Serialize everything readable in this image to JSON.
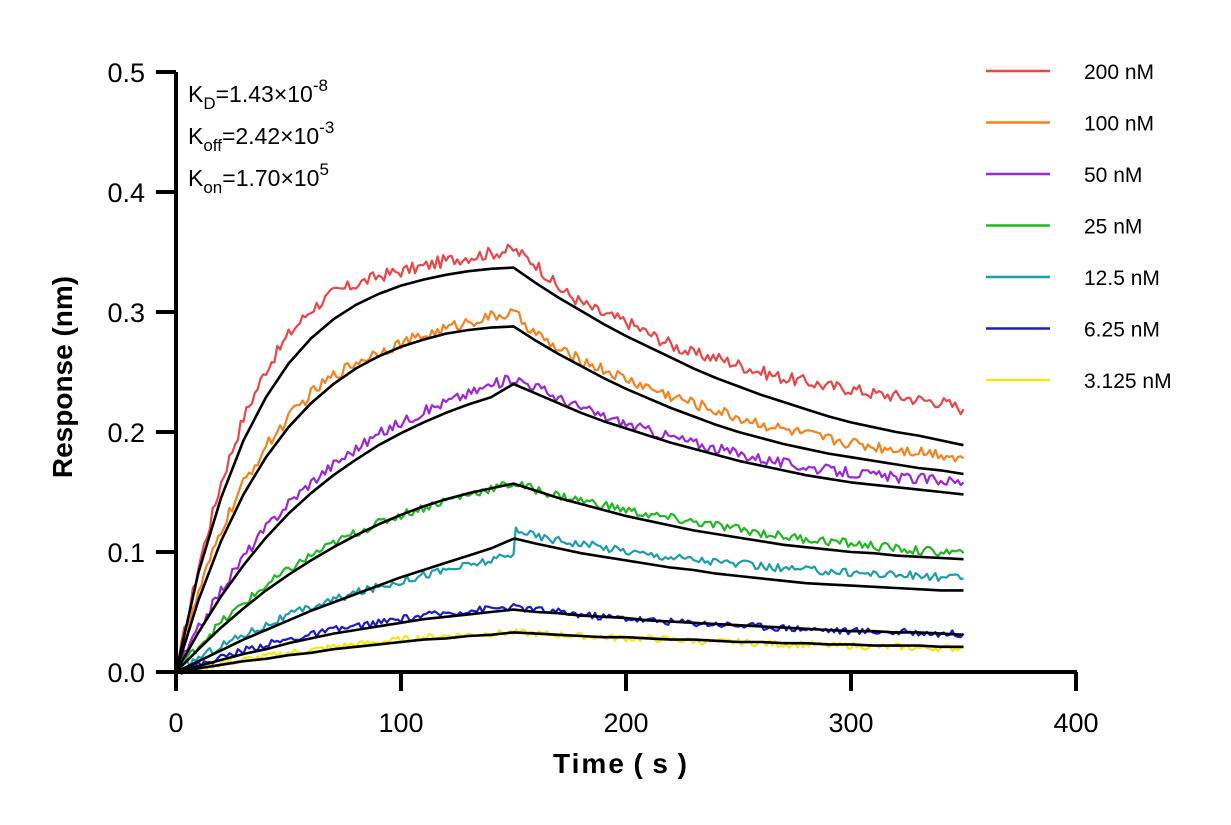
{
  "chart_data": {
    "type": "line",
    "xlabel": "Time ( s )",
    "ylabel": "Response (nm)",
    "xlim": [
      0,
      400
    ],
    "ylim": [
      0,
      0.5
    ],
    "x_ticks": [
      "0",
      "100",
      "200",
      "300",
      "400"
    ],
    "y_ticks": [
      "0.0",
      "0.1",
      "0.2",
      "0.3",
      "0.4",
      "0.5"
    ],
    "grid": false,
    "legend_position": "top-right",
    "annotations": [
      {
        "base": "K",
        "sub": "D",
        "text": "=1.43×10",
        "sup": "-8"
      },
      {
        "base": "K",
        "sub": "off",
        "text": "=2.42×10",
        "sup": "-3"
      },
      {
        "base": "K",
        "sub": "on",
        "text": "=1.70×10",
        "sup": "5"
      }
    ],
    "association_end_s": 150,
    "end_s": 350,
    "series": [
      {
        "name": "200 nM",
        "color": "#e8474a",
        "x": [
          0,
          10,
          20,
          30,
          40,
          50,
          60,
          70,
          80,
          90,
          100,
          110,
          120,
          130,
          140,
          150,
          160,
          170,
          180,
          190,
          200,
          210,
          220,
          230,
          240,
          250,
          260,
          270,
          280,
          290,
          300,
          310,
          320,
          330,
          340,
          350
        ],
        "measured": [
          0,
          0.088,
          0.158,
          0.212,
          0.252,
          0.281,
          0.302,
          0.316,
          0.323,
          0.33,
          0.334,
          0.338,
          0.343,
          0.346,
          0.349,
          0.352,
          0.34,
          0.32,
          0.308,
          0.298,
          0.292,
          0.282,
          0.273,
          0.265,
          0.262,
          0.256,
          0.25,
          0.245,
          0.242,
          0.238,
          0.236,
          0.232,
          0.23,
          0.227,
          0.225,
          0.219
        ],
        "fitted": [
          0,
          0.083,
          0.145,
          0.193,
          0.229,
          0.257,
          0.278,
          0.294,
          0.306,
          0.315,
          0.322,
          0.327,
          0.331,
          0.334,
          0.336,
          0.337,
          0.324,
          0.312,
          0.301,
          0.29,
          0.28,
          0.271,
          0.262,
          0.253,
          0.245,
          0.238,
          0.231,
          0.225,
          0.219,
          0.213,
          0.208,
          0.204,
          0.2,
          0.197,
          0.193,
          0.189
        ]
      },
      {
        "name": "100 nM",
        "color": "#f58220",
        "x": [
          0,
          10,
          20,
          30,
          40,
          50,
          60,
          70,
          80,
          90,
          100,
          110,
          120,
          130,
          140,
          150,
          160,
          170,
          180,
          190,
          200,
          210,
          220,
          230,
          240,
          250,
          260,
          270,
          280,
          290,
          300,
          310,
          320,
          330,
          340,
          350
        ],
        "measured": [
          0,
          0.066,
          0.118,
          0.157,
          0.188,
          0.212,
          0.232,
          0.247,
          0.258,
          0.267,
          0.274,
          0.28,
          0.286,
          0.292,
          0.296,
          0.299,
          0.282,
          0.268,
          0.26,
          0.252,
          0.244,
          0.237,
          0.23,
          0.224,
          0.218,
          0.212,
          0.207,
          0.202,
          0.198,
          0.194,
          0.191,
          0.188,
          0.186,
          0.184,
          0.182,
          0.178
        ],
        "fitted": [
          0,
          0.06,
          0.109,
          0.148,
          0.179,
          0.204,
          0.224,
          0.24,
          0.253,
          0.263,
          0.271,
          0.277,
          0.282,
          0.285,
          0.287,
          0.288,
          0.276,
          0.265,
          0.255,
          0.245,
          0.236,
          0.228,
          0.22,
          0.213,
          0.206,
          0.2,
          0.195,
          0.19,
          0.186,
          0.182,
          0.179,
          0.176,
          0.173,
          0.17,
          0.168,
          0.165
        ]
      },
      {
        "name": "50 nM",
        "color": "#9b27d6",
        "x": [
          0,
          10,
          20,
          30,
          40,
          50,
          60,
          70,
          80,
          90,
          100,
          110,
          120,
          130,
          140,
          150,
          160,
          170,
          180,
          190,
          200,
          210,
          220,
          230,
          240,
          250,
          260,
          270,
          280,
          290,
          300,
          310,
          320,
          330,
          340,
          350
        ],
        "measured": [
          0,
          0.036,
          0.068,
          0.096,
          0.12,
          0.141,
          0.158,
          0.173,
          0.186,
          0.198,
          0.208,
          0.217,
          0.225,
          0.232,
          0.239,
          0.245,
          0.238,
          0.228,
          0.22,
          0.213,
          0.207,
          0.201,
          0.196,
          0.191,
          0.186,
          0.182,
          0.178,
          0.174,
          0.171,
          0.168,
          0.166,
          0.164,
          0.162,
          0.161,
          0.16,
          0.158
        ],
        "fitted": [
          0,
          0.033,
          0.063,
          0.089,
          0.112,
          0.132,
          0.149,
          0.164,
          0.177,
          0.189,
          0.199,
          0.208,
          0.216,
          0.223,
          0.229,
          0.24,
          0.232,
          0.224,
          0.216,
          0.209,
          0.203,
          0.197,
          0.191,
          0.186,
          0.181,
          0.176,
          0.172,
          0.168,
          0.164,
          0.161,
          0.158,
          0.156,
          0.154,
          0.152,
          0.15,
          0.148
        ]
      },
      {
        "name": "25 nM",
        "color": "#22b823",
        "x": [
          0,
          10,
          20,
          30,
          40,
          50,
          60,
          70,
          80,
          90,
          100,
          110,
          120,
          130,
          140,
          150,
          160,
          170,
          180,
          190,
          200,
          210,
          220,
          230,
          240,
          250,
          260,
          270,
          280,
          290,
          300,
          310,
          320,
          330,
          340,
          350
        ],
        "measured": [
          0,
          0.022,
          0.041,
          0.057,
          0.072,
          0.085,
          0.097,
          0.107,
          0.116,
          0.124,
          0.131,
          0.137,
          0.143,
          0.148,
          0.153,
          0.157,
          0.152,
          0.147,
          0.143,
          0.139,
          0.135,
          0.131,
          0.128,
          0.125,
          0.122,
          0.119,
          0.116,
          0.113,
          0.111,
          0.109,
          0.107,
          0.105,
          0.103,
          0.101,
          0.1,
          0.099
        ],
        "fitted": [
          0,
          0.019,
          0.037,
          0.053,
          0.068,
          0.081,
          0.093,
          0.104,
          0.114,
          0.123,
          0.131,
          0.138,
          0.144,
          0.149,
          0.153,
          0.157,
          0.151,
          0.145,
          0.14,
          0.135,
          0.13,
          0.126,
          0.122,
          0.118,
          0.115,
          0.112,
          0.109,
          0.106,
          0.104,
          0.102,
          0.1,
          0.099,
          0.097,
          0.096,
          0.095,
          0.094
        ]
      },
      {
        "name": "12.5 nM",
        "color": "#1d9ea8",
        "x": [
          0,
          10,
          20,
          30,
          40,
          50,
          60,
          70,
          80,
          90,
          100,
          110,
          120,
          130,
          140,
          150,
          151,
          160,
          170,
          180,
          190,
          200,
          210,
          220,
          230,
          240,
          250,
          260,
          270,
          280,
          290,
          300,
          310,
          320,
          330,
          340,
          350
        ],
        "measured": [
          0,
          0.012,
          0.022,
          0.031,
          0.039,
          0.047,
          0.054,
          0.06,
          0.066,
          0.071,
          0.076,
          0.081,
          0.085,
          0.089,
          0.093,
          0.097,
          0.12,
          0.113,
          0.11,
          0.107,
          0.104,
          0.101,
          0.098,
          0.096,
          0.094,
          0.092,
          0.09,
          0.088,
          0.086,
          0.085,
          0.084,
          0.083,
          0.082,
          0.081,
          0.08,
          0.079,
          0.078
        ],
        "fitted": [
          0,
          0.009,
          0.018,
          0.027,
          0.035,
          0.043,
          0.051,
          0.058,
          0.065,
          0.072,
          0.079,
          0.085,
          0.091,
          0.097,
          0.103,
          0.111,
          0.111,
          0.107,
          0.103,
          0.099,
          0.096,
          0.093,
          0.09,
          0.087,
          0.085,
          0.082,
          0.08,
          0.078,
          0.076,
          0.074,
          0.073,
          0.072,
          0.071,
          0.07,
          0.069,
          0.068,
          0.068
        ]
      },
      {
        "name": "6.25 nM",
        "color": "#1b1bcc",
        "x": [
          0,
          10,
          20,
          30,
          40,
          50,
          60,
          70,
          80,
          90,
          100,
          110,
          120,
          130,
          140,
          150,
          160,
          170,
          180,
          190,
          200,
          210,
          220,
          230,
          240,
          250,
          260,
          270,
          280,
          290,
          300,
          310,
          320,
          330,
          340,
          350
        ],
        "measured": [
          0,
          0.006,
          0.012,
          0.018,
          0.023,
          0.027,
          0.031,
          0.035,
          0.038,
          0.041,
          0.044,
          0.047,
          0.049,
          0.051,
          0.053,
          0.054,
          0.052,
          0.05,
          0.048,
          0.046,
          0.045,
          0.043,
          0.042,
          0.041,
          0.04,
          0.039,
          0.038,
          0.037,
          0.036,
          0.035,
          0.034,
          0.034,
          0.033,
          0.033,
          0.032,
          0.032
        ],
        "fitted": [
          0,
          0.005,
          0.01,
          0.015,
          0.019,
          0.024,
          0.028,
          0.032,
          0.035,
          0.038,
          0.041,
          0.044,
          0.046,
          0.048,
          0.05,
          0.052,
          0.05,
          0.049,
          0.047,
          0.046,
          0.045,
          0.043,
          0.042,
          0.041,
          0.04,
          0.039,
          0.038,
          0.037,
          0.036,
          0.035,
          0.034,
          0.034,
          0.033,
          0.033,
          0.032,
          0.031
        ]
      },
      {
        "name": "3.125 nM",
        "color": "#f2e81a",
        "x": [
          0,
          10,
          20,
          30,
          40,
          50,
          60,
          70,
          80,
          90,
          100,
          110,
          120,
          130,
          140,
          150,
          160,
          170,
          180,
          190,
          200,
          210,
          220,
          230,
          240,
          250,
          260,
          270,
          280,
          290,
          300,
          310,
          320,
          330,
          340,
          350
        ],
        "measured": [
          0,
          0.003,
          0.007,
          0.01,
          0.013,
          0.016,
          0.018,
          0.021,
          0.023,
          0.025,
          0.027,
          0.029,
          0.03,
          0.031,
          0.032,
          0.033,
          0.032,
          0.031,
          0.03,
          0.029,
          0.028,
          0.028,
          0.027,
          0.026,
          0.025,
          0.025,
          0.024,
          0.023,
          0.023,
          0.022,
          0.022,
          0.021,
          0.021,
          0.02,
          0.02,
          0.02
        ],
        "fitted": [
          0,
          0.003,
          0.006,
          0.009,
          0.011,
          0.014,
          0.016,
          0.019,
          0.021,
          0.023,
          0.025,
          0.027,
          0.028,
          0.03,
          0.031,
          0.033,
          0.032,
          0.031,
          0.03,
          0.029,
          0.029,
          0.028,
          0.027,
          0.027,
          0.026,
          0.025,
          0.025,
          0.024,
          0.024,
          0.023,
          0.023,
          0.022,
          0.022,
          0.022,
          0.021,
          0.021
        ]
      }
    ]
  }
}
